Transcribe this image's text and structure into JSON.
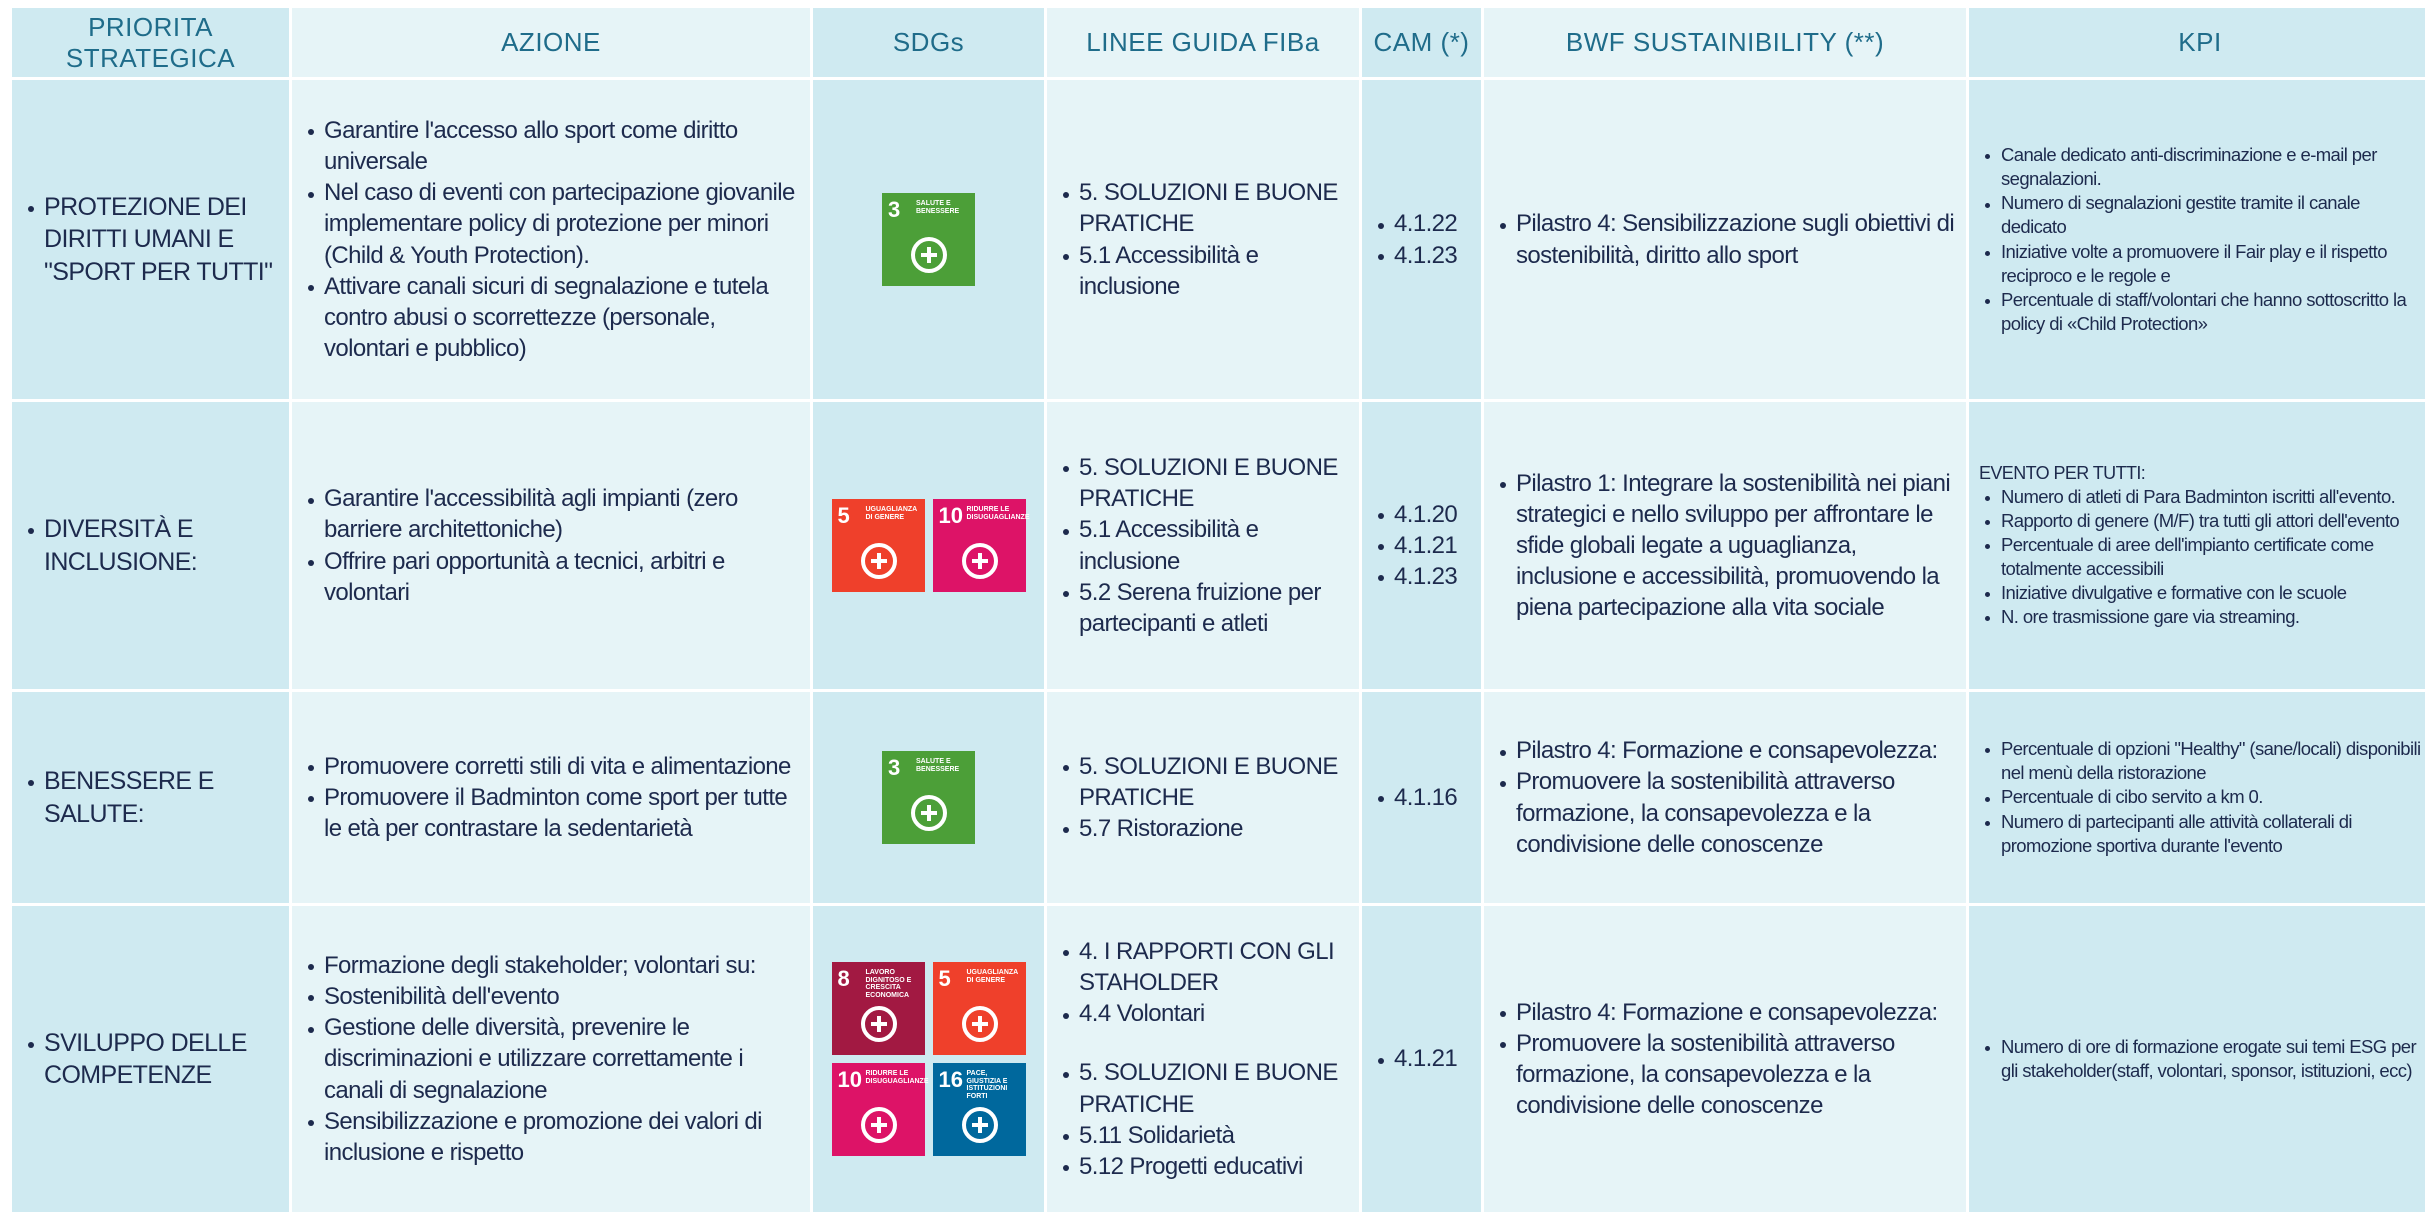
{
  "headers": [
    "PRIORITA STRATEGICA",
    "AZIONE",
    "SDGs",
    "LINEE GUIDA FIBa",
    "CAM (*)",
    "BWF SUSTAINIBILITY (**)",
    "KPI"
  ],
  "rows": [
    {
      "priority": "PROTEZIONE DEI DIRITTI UMANI E \"SPORT PER TUTTI\"",
      "azione": [
        "Garantire l'accesso allo sport come diritto universale",
        "Nel caso di eventi con partecipazione giovanile implementare policy  di protezione per minori (Child & Youth Protection).",
        "Attivare canali sicuri di segnalazione e tutela contro abusi o scorrettezze (personale, volontari e pubblico)"
      ],
      "sdgs": [
        {
          "number": "3",
          "title": "SALUTE E BENESSERE",
          "color": "#4c9f38"
        }
      ],
      "linee": [
        [
          "5. SOLUZIONI E BUONE PRATICHE",
          "5.1 Accessibilità e inclusione"
        ]
      ],
      "cam": [
        "4.1.22",
        "4.1.23"
      ],
      "bwf": [
        "Pilastro 4: Sensibilizzazione sugli obiettivi di sostenibilità, diritto allo sport"
      ],
      "kpi": [
        "Canale dedicato anti-discriminazione e e-mail per segnalazioni.",
        "Numero di segnalazioni gestite tramite il canale dedicato",
        "Iniziative volte a promuovere il Fair play e il rispetto reciproco e le regole e",
        "Percentuale di staff/volontari che hanno sottoscritto la policy di «Child Protection»"
      ]
    },
    {
      "priority": "DIVERSITÀ E INCLUSIONE:",
      "azione": [
        "Garantire l'accessibilità agli impianti (zero barriere architettoniche)",
        "Offrire pari opportunità a tecnici, arbitri e volontari"
      ],
      "sdgs": [
        {
          "number": "5",
          "title": "UGUAGLIANZA DI GENERE",
          "color": "#ef402b"
        },
        {
          "number": "10",
          "title": "RIDURRE LE DISUGUAGLIANZE",
          "color": "#dd1367"
        }
      ],
      "linee": [
        [
          "5. SOLUZIONI E BUONE PRATICHE",
          "5.1 Accessibilità e inclusione",
          "5.2 Serena fruizione per partecipanti e atleti"
        ]
      ],
      "cam": [
        "4.1.20",
        "4.1.21",
        "4.1.23"
      ],
      "bwf": [
        "Pilastro  1: Integrare la sostenibilità nei piani strategici e nello sviluppo per affrontare le sfide globali legate a uguaglianza, inclusione e accessibilità, promuovendo la piena partecipazione alla vita sociale"
      ],
      "kpi_heading": "EVENTO PER TUTTI:",
      "kpi": [
        "Numero di atleti di Para Badminton iscritti all'evento.",
        "Rapporto di genere (M/F) tra tutti gli attori dell'evento",
        "Percentuale di aree dell'impianto certificate come totalmente accessibili",
        "Iniziative  divulgative e  formative con le scuole",
        "N. ore trasmissione gare via streaming."
      ]
    },
    {
      "priority": "BENESSERE E SALUTE:",
      "azione": [
        "Promuovere corretti stili di vita e alimentazione",
        "Promuovere il Badminton come sport per tutte le età per contrastare la sedentarietà"
      ],
      "sdgs": [
        {
          "number": "3",
          "title": "SALUTE E BENESSERE",
          "color": "#4c9f38"
        }
      ],
      "linee": [
        [
          "5. SOLUZIONI E BUONE PRATICHE",
          "5.7 Ristorazione"
        ]
      ],
      "cam": [
        "4.1.16"
      ],
      "bwf": [
        "Pilastro 4: Formazione e consapevolezza:",
        "Promuovere la sostenibilità attraverso formazione, la consapevolezza e la condivisione delle conoscenze"
      ],
      "kpi": [
        "Percentuale di opzioni \"Healthy\" (sane/locali) disponibili nel menù della ristorazione",
        "Percentuale di cibo servito a km 0.",
        "Numero di partecipanti alle attività collaterali di promozione sportiva durante l'evento"
      ]
    },
    {
      "priority": "SVILUPPO DELLE COMPETENZE",
      "azione": [
        "Formazione degli stakeholder; volontari su:",
        "Sostenibilità dell'evento",
        "Gestione delle diversità, prevenire le discriminazioni e utilizzare correttamente i canali di segnalazione",
        "Sensibilizzazione e promozione dei valori di inclusione e rispetto"
      ],
      "sdgs": [
        {
          "number": "8",
          "title": "LAVORO DIGNITOSO E CRESCITA ECONOMICA",
          "color": "#a21942"
        },
        {
          "number": "5",
          "title": "UGUAGLIANZA DI GENERE",
          "color": "#ef402b"
        },
        {
          "number": "10",
          "title": "RIDURRE LE DISUGUAGLIANZE",
          "color": "#dd1367"
        },
        {
          "number": "16",
          "title": "PACE, GIUSTIZIA E ISTITUZIONI FORTI",
          "color": "#00689d"
        }
      ],
      "linee": [
        [
          "4. I RAPPORTI CON GLI STAHOLDER",
          "4.4 Volontari"
        ],
        [
          "5. SOLUZIONI E BUONE PRATICHE",
          "5.11 Solidarietà",
          "5.12 Progetti educativi"
        ]
      ],
      "cam": [
        "4.1.21"
      ],
      "bwf": [
        "Pilastro 4: Formazione e consapevolezza:",
        "Promuovere la sostenibilità attraverso formazione, la consapevolezza e la condivisione delle conoscenze"
      ],
      "kpi": [
        " Numero di ore di formazione erogate sui temi ESG per gli stakeholder(staff, volontari, sponsor, istituzioni, ecc)"
      ]
    }
  ]
}
